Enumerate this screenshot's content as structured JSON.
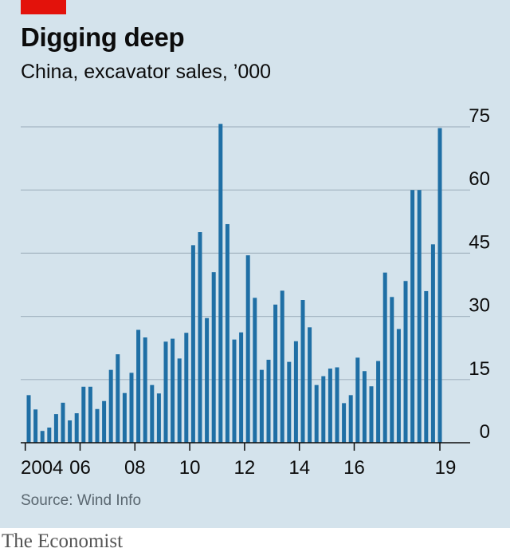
{
  "title": "Digging deep",
  "subtitle": "China, excavator sales, ’000",
  "source": "Source: Wind Info",
  "publisher": "The Economist",
  "colors": {
    "bar": "#1f6fa5",
    "background": "#d4e3ec",
    "accent": "#e3120b",
    "gridline": "#a4b5c1"
  },
  "chart_data": {
    "type": "bar",
    "title": "Digging deep",
    "subtitle": "China, excavator sales, ’000",
    "xlabel": "",
    "ylabel": "",
    "ylim": [
      0,
      75
    ],
    "yticks": [
      0,
      15,
      30,
      45,
      60,
      75
    ],
    "ytick_labels": [
      "0",
      "15",
      "30",
      "45",
      "60",
      "75"
    ],
    "y_axis_side": "right",
    "grid": true,
    "legend": "none",
    "x_ticks": [
      {
        "label": "2004",
        "year": 2004
      },
      {
        "label": "06",
        "year": 2006
      },
      {
        "label": "08",
        "year": 2008
      },
      {
        "label": "10",
        "year": 2010
      },
      {
        "label": "12",
        "year": 2012
      },
      {
        "label": "14",
        "year": 2014
      },
      {
        "label": "16",
        "year": 2016
      },
      {
        "label": "19",
        "year": 2019
      }
    ],
    "period": "quarterly, 2004 Q1 to 2019 Q1",
    "categories": [
      "2004 Q1",
      "2004 Q2",
      "2004 Q3",
      "2004 Q4",
      "2005 Q1",
      "2005 Q2",
      "2005 Q3",
      "2005 Q4",
      "2006 Q1",
      "2006 Q2",
      "2006 Q3",
      "2006 Q4",
      "2007 Q1",
      "2007 Q2",
      "2007 Q3",
      "2007 Q4",
      "2008 Q1",
      "2008 Q2",
      "2008 Q3",
      "2008 Q4",
      "2009 Q1",
      "2009 Q2",
      "2009 Q3",
      "2009 Q4",
      "2010 Q1",
      "2010 Q2",
      "2010 Q3",
      "2010 Q4",
      "2011 Q1",
      "2011 Q2",
      "2011 Q3",
      "2011 Q4",
      "2012 Q1",
      "2012 Q2",
      "2012 Q3",
      "2012 Q4",
      "2013 Q1",
      "2013 Q2",
      "2013 Q3",
      "2013 Q4",
      "2014 Q1",
      "2014 Q2",
      "2014 Q3",
      "2014 Q4",
      "2015 Q1",
      "2015 Q2",
      "2015 Q3",
      "2015 Q4",
      "2016 Q1",
      "2016 Q2",
      "2016 Q3",
      "2016 Q4",
      "2017 Q1",
      "2017 Q2",
      "2017 Q3",
      "2017 Q4",
      "2018 Q1",
      "2018 Q2",
      "2018 Q3",
      "2018 Q4",
      "2019 Q1"
    ],
    "values": [
      11.3,
      7.9,
      2.8,
      3.6,
      6.8,
      9.5,
      5.3,
      7.0,
      13.3,
      13.3,
      8.0,
      9.9,
      17.3,
      21.0,
      11.8,
      16.6,
      26.8,
      25.0,
      13.7,
      11.7,
      24.0,
      24.7,
      20.0,
      26.1,
      46.9,
      50.0,
      29.6,
      40.5,
      75.7,
      51.9,
      24.5,
      26.2,
      44.5,
      34.4,
      17.3,
      19.7,
      32.8,
      36.1,
      19.2,
      24.1,
      33.9,
      27.4,
      13.7,
      15.8,
      17.6,
      17.9,
      9.4,
      11.3,
      20.2,
      17.0,
      13.4,
      19.4,
      40.4,
      34.6,
      27.0,
      38.4,
      60.0,
      60.0,
      36.0,
      47.1,
      74.7
    ]
  }
}
